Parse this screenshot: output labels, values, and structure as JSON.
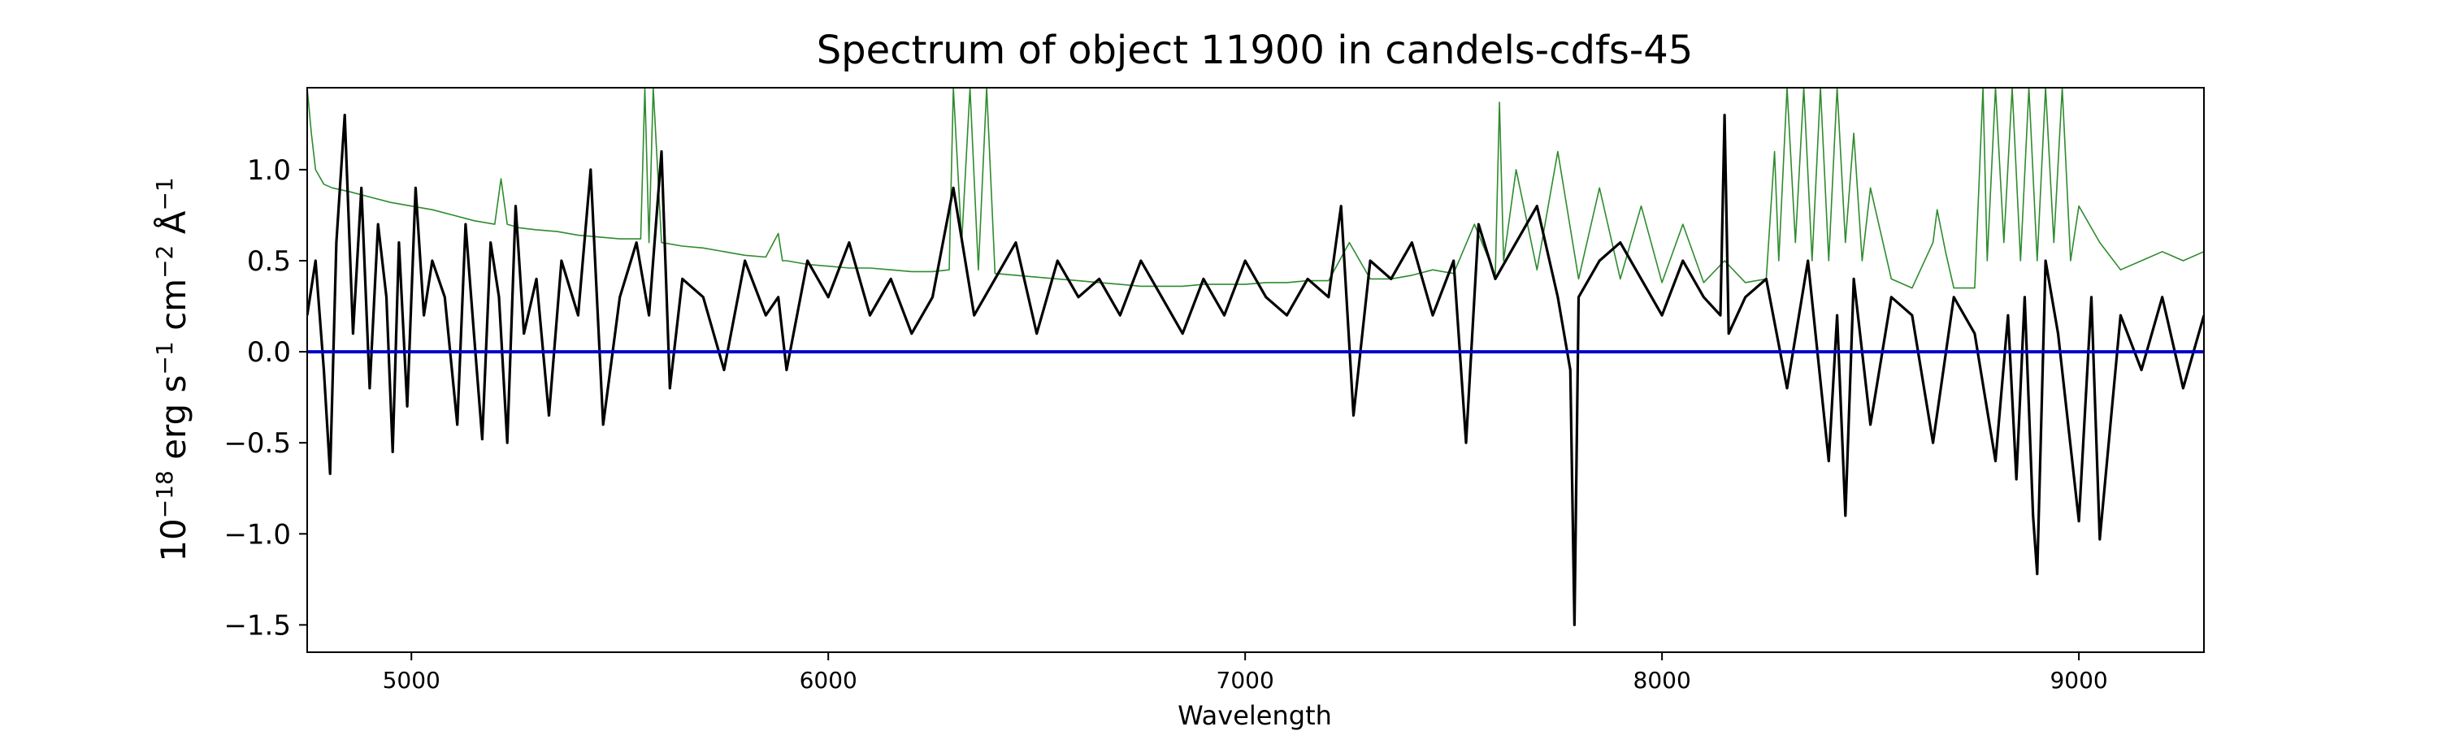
{
  "chart_data": {
    "type": "line",
    "title": "Spectrum of object 11900 in candels-cdfs-45",
    "xlabel": "Wavelength",
    "ylabel_parts": [
      "10",
      "−18",
      " erg s",
      "−1",
      " cm",
      "−2",
      " Å",
      "−1"
    ],
    "xlim": [
      4750,
      9300
    ],
    "ylim": [
      -1.65,
      1.45
    ],
    "xticks": [
      5000,
      6000,
      7000,
      8000,
      9000
    ],
    "xtick_labels": [
      "5000",
      "6000",
      "7000",
      "8000",
      "9000"
    ],
    "yticks": [
      -1.5,
      -1.0,
      -0.5,
      0.0,
      0.5,
      1.0
    ],
    "ytick_labels": [
      "−1.5",
      "−1.0",
      "−0.5",
      "0.0",
      "0.5",
      "1.0"
    ],
    "grid": false,
    "legend": "none",
    "series": [
      {
        "role": "flux",
        "color": "#000000",
        "x": [
          4750,
          4770,
          4790,
          4805,
          4820,
          4840,
          4860,
          4880,
          4900,
          4920,
          4940,
          4955,
          4970,
          4990,
          5010,
          5030,
          5050,
          5080,
          5110,
          5130,
          5150,
          5170,
          5190,
          5210,
          5230,
          5250,
          5270,
          5300,
          5330,
          5360,
          5400,
          5430,
          5460,
          5500,
          5540,
          5570,
          5600,
          5620,
          5650,
          5700,
          5750,
          5800,
          5850,
          5880,
          5900,
          5950,
          6000,
          6050,
          6100,
          6150,
          6200,
          6250,
          6300,
          6350,
          6400,
          6450,
          6500,
          6550,
          6600,
          6650,
          6700,
          6750,
          6800,
          6850,
          6900,
          6950,
          7000,
          7050,
          7100,
          7150,
          7200,
          7230,
          7260,
          7300,
          7350,
          7400,
          7450,
          7500,
          7530,
          7560,
          7600,
          7650,
          7700,
          7750,
          7780,
          7790,
          7800,
          7850,
          7900,
          7950,
          8000,
          8050,
          8100,
          8140,
          8150,
          8160,
          8200,
          8250,
          8300,
          8350,
          8400,
          8420,
          8440,
          8460,
          8500,
          8550,
          8600,
          8650,
          8700,
          8750,
          8800,
          8830,
          8850,
          8870,
          8890,
          8900,
          8920,
          8950,
          9000,
          9030,
          9050,
          9100,
          9150,
          9200,
          9250,
          9300
        ],
        "y": [
          0.2,
          0.5,
          -0.1,
          -0.67,
          0.6,
          1.3,
          0.1,
          0.9,
          -0.2,
          0.7,
          0.3,
          -0.55,
          0.6,
          -0.3,
          0.9,
          0.2,
          0.5,
          0.3,
          -0.4,
          0.7,
          0.1,
          -0.48,
          0.6,
          0.3,
          -0.5,
          0.8,
          0.1,
          0.4,
          -0.35,
          0.5,
          0.2,
          1.0,
          -0.4,
          0.3,
          0.6,
          0.2,
          1.1,
          -0.2,
          0.4,
          0.3,
          -0.1,
          0.5,
          0.2,
          0.3,
          -0.1,
          0.5,
          0.3,
          0.6,
          0.2,
          0.4,
          0.1,
          0.3,
          0.9,
          0.2,
          0.4,
          0.6,
          0.1,
          0.5,
          0.3,
          0.4,
          0.2,
          0.5,
          0.3,
          0.1,
          0.4,
          0.2,
          0.5,
          0.3,
          0.2,
          0.4,
          0.3,
          0.8,
          -0.35,
          0.5,
          0.4,
          0.6,
          0.2,
          0.5,
          -0.5,
          0.7,
          0.4,
          0.6,
          0.8,
          0.3,
          -0.1,
          -1.5,
          0.3,
          0.5,
          0.6,
          0.4,
          0.2,
          0.5,
          0.3,
          0.2,
          1.3,
          0.1,
          0.3,
          0.4,
          -0.2,
          0.5,
          -0.6,
          0.2,
          -0.9,
          0.4,
          -0.4,
          0.3,
          0.2,
          -0.5,
          0.3,
          0.1,
          -0.6,
          0.2,
          -0.7,
          0.3,
          -0.9,
          -1.22,
          0.5,
          0.1,
          -0.93,
          0.3,
          -1.03,
          0.2,
          -0.1,
          0.3,
          -0.2,
          0.2
        ]
      },
      {
        "role": "error",
        "color": "#2e8b2e",
        "x": [
          4750,
          4760,
          4770,
          4790,
          4810,
          4850,
          4900,
          4950,
          5000,
          5050,
          5100,
          5150,
          5200,
          5215,
          5230,
          5260,
          5300,
          5350,
          5400,
          5450,
          5500,
          5550,
          5560,
          5570,
          5580,
          5600,
          5650,
          5700,
          5750,
          5800,
          5850,
          5880,
          5890,
          5900,
          5950,
          6000,
          6050,
          6100,
          6150,
          6200,
          6250,
          6290,
          6300,
          6320,
          6340,
          6360,
          6380,
          6400,
          6450,
          6500,
          6550,
          6600,
          6650,
          6700,
          6750,
          6800,
          6850,
          6900,
          6950,
          7000,
          7050,
          7100,
          7150,
          7200,
          7250,
          7300,
          7350,
          7400,
          7450,
          7500,
          7550,
          7600,
          7610,
          7620,
          7650,
          7700,
          7750,
          7800,
          7850,
          7900,
          7950,
          8000,
          8050,
          8100,
          8150,
          8200,
          8250,
          8270,
          8280,
          8300,
          8320,
          8340,
          8360,
          8380,
          8400,
          8420,
          8440,
          8460,
          8480,
          8500,
          8550,
          8600,
          8650,
          8660,
          8680,
          8700,
          8750,
          8770,
          8780,
          8800,
          8820,
          8840,
          8860,
          8880,
          8900,
          8920,
          8940,
          8960,
          8980,
          9000,
          9050,
          9100,
          9150,
          9200,
          9250,
          9300
        ],
        "y": [
          1.45,
          1.2,
          1.0,
          0.92,
          0.9,
          0.88,
          0.85,
          0.82,
          0.8,
          0.78,
          0.75,
          0.72,
          0.7,
          0.95,
          0.7,
          0.68,
          0.67,
          0.66,
          0.64,
          0.63,
          0.62,
          0.62,
          1.45,
          0.6,
          1.45,
          0.6,
          0.58,
          0.57,
          0.55,
          0.53,
          0.52,
          0.65,
          0.5,
          0.5,
          0.48,
          0.47,
          0.46,
          0.46,
          0.45,
          0.44,
          0.44,
          0.45,
          1.45,
          0.6,
          1.45,
          0.45,
          1.45,
          0.43,
          0.42,
          0.41,
          0.4,
          0.39,
          0.38,
          0.37,
          0.36,
          0.36,
          0.36,
          0.37,
          0.37,
          0.37,
          0.38,
          0.38,
          0.39,
          0.39,
          0.6,
          0.4,
          0.4,
          0.42,
          0.45,
          0.43,
          0.7,
          0.42,
          1.37,
          0.5,
          1.0,
          0.45,
          1.1,
          0.4,
          0.9,
          0.4,
          0.8,
          0.38,
          0.7,
          0.38,
          0.5,
          0.38,
          0.4,
          1.1,
          0.5,
          1.45,
          0.6,
          1.45,
          0.5,
          1.45,
          0.5,
          1.45,
          0.6,
          1.2,
          0.5,
          0.9,
          0.4,
          0.35,
          0.6,
          0.78,
          0.55,
          0.35,
          0.35,
          1.45,
          0.5,
          1.45,
          0.6,
          1.45,
          0.5,
          1.45,
          0.5,
          1.45,
          0.6,
          1.45,
          0.5,
          0.8,
          0.6,
          0.45,
          0.5,
          0.55,
          0.5,
          0.55
        ]
      },
      {
        "role": "zero",
        "color": "#0000cc",
        "x": [
          4750,
          9300
        ],
        "y": [
          0.0,
          0.0
        ]
      }
    ]
  }
}
